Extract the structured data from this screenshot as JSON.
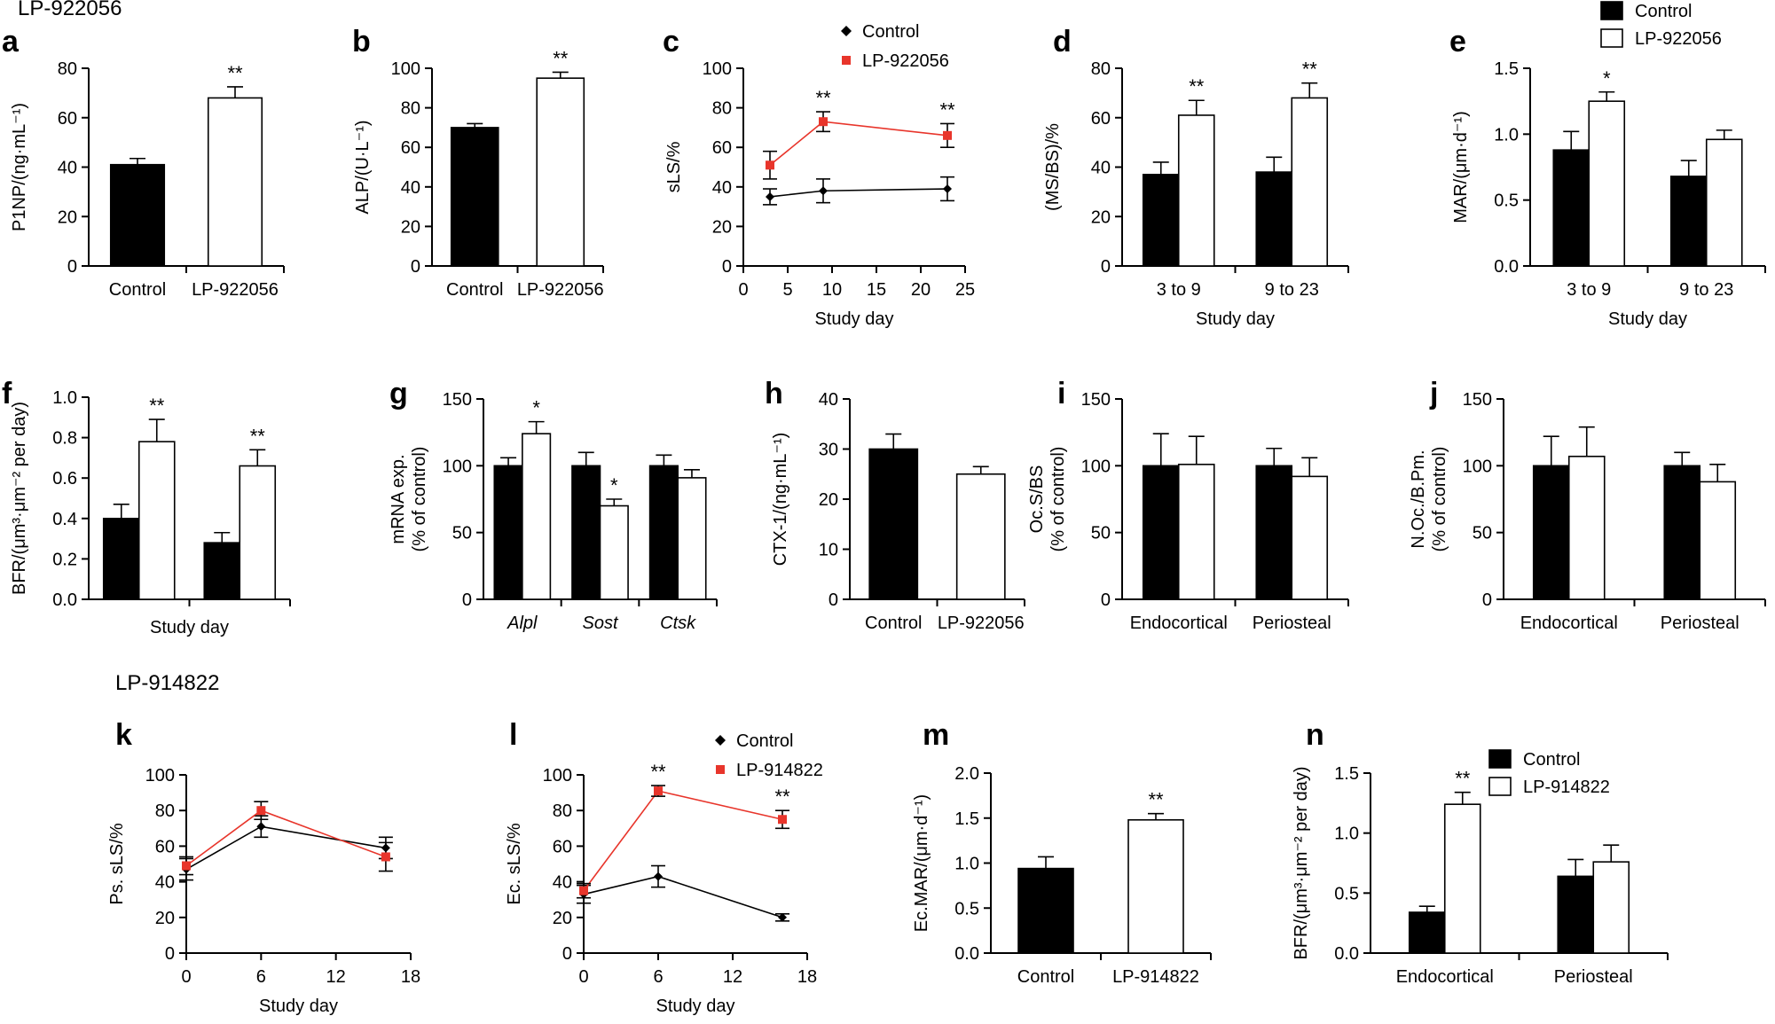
{
  "figure": {
    "title_top": "LP-922056",
    "title_bottom": "LP-914822"
  },
  "colors": {
    "control": "#000000",
    "treated": "#ffffff",
    "red": "#e8352b"
  },
  "chart_data": [
    {
      "id": "a",
      "label": "a",
      "type": "bar",
      "ylabel": "P1NP/(ng·mL⁻¹)",
      "ylim": [
        0,
        80
      ],
      "yticks": [
        "0",
        "20",
        "40",
        "60",
        "80"
      ],
      "categories": [
        "Control",
        "LP-922056"
      ],
      "values": [
        41,
        68
      ],
      "errors": [
        2.5,
        4.5
      ],
      "fills": [
        "c",
        "t"
      ],
      "sig": [
        "",
        "**"
      ]
    },
    {
      "id": "b",
      "label": "b",
      "type": "bar",
      "ylabel": "ALP/(U·L⁻¹)",
      "ylim": [
        0,
        100
      ],
      "yticks": [
        "0",
        "20",
        "40",
        "60",
        "80",
        "100"
      ],
      "categories": [
        "Control",
        "LP-922056"
      ],
      "values": [
        70,
        95
      ],
      "errors": [
        2,
        3
      ],
      "fills": [
        "c",
        "t"
      ],
      "sig": [
        "",
        "**"
      ]
    },
    {
      "id": "c",
      "label": "c",
      "type": "line",
      "ylabel": "sLS/%",
      "xlabel": "Study day",
      "xlim": [
        0,
        25
      ],
      "ylim": [
        0,
        100
      ],
      "xticks": [
        "0",
        "5",
        "10",
        "15",
        "20",
        "25"
      ],
      "yticks": [
        "0",
        "20",
        "40",
        "60",
        "80",
        "100"
      ],
      "legend": [
        "Control",
        "LP-922056"
      ],
      "series": [
        {
          "name": "Control",
          "x": [
            3,
            9,
            23
          ],
          "values": [
            35,
            38,
            39
          ],
          "errors": [
            4,
            6,
            6
          ],
          "color": "black",
          "marker": "diamond",
          "sig": [
            "",
            "",
            ""
          ]
        },
        {
          "name": "LP-922056",
          "x": [
            3,
            9,
            23
          ],
          "values": [
            51,
            73,
            66
          ],
          "errors": [
            7,
            5,
            6
          ],
          "color": "red",
          "marker": "square",
          "sig": [
            "",
            "**",
            "**"
          ]
        }
      ]
    },
    {
      "id": "d",
      "label": "d",
      "type": "grouped_bar",
      "ylabel": "(MS/BS)/%",
      "xlabel": "Study day",
      "ylim": [
        0,
        80
      ],
      "yticks": [
        "0",
        "20",
        "40",
        "60",
        "80"
      ],
      "categories": [
        "3 to 9",
        "9 to 23"
      ],
      "series": [
        {
          "name": "Control",
          "values": [
            37,
            38
          ],
          "errors": [
            5,
            6
          ],
          "sig": [
            "",
            ""
          ]
        },
        {
          "name": "LP-922056",
          "values": [
            61,
            68
          ],
          "errors": [
            6,
            6
          ],
          "sig": [
            "**",
            "**"
          ]
        }
      ]
    },
    {
      "id": "e",
      "label": "e",
      "type": "grouped_bar",
      "ylabel": "MAR/(μm·d⁻¹)",
      "xlabel": "Study day",
      "ylim": [
        0,
        1.5
      ],
      "yticks": [
        "0.0",
        "0.5",
        "1.0",
        "1.5"
      ],
      "categories": [
        "3 to 9",
        "9 to 23"
      ],
      "legend": [
        "Control",
        "LP-922056"
      ],
      "series": [
        {
          "name": "Control",
          "values": [
            0.88,
            0.68
          ],
          "errors": [
            0.14,
            0.12
          ],
          "sig": [
            "",
            ""
          ]
        },
        {
          "name": "LP-922056",
          "values": [
            1.25,
            0.96
          ],
          "errors": [
            0.07,
            0.07
          ],
          "sig": [
            "*",
            ""
          ]
        }
      ]
    },
    {
      "id": "f",
      "label": "f",
      "type": "grouped_bar",
      "ylabel": "BFR/(μm³·μm⁻² per day)",
      "xlabel": "Study day",
      "ylim": [
        0,
        1.0
      ],
      "yticks": [
        "0.0",
        "0.2",
        "0.4",
        "0.6",
        "0.8",
        "1.0"
      ],
      "categories": [
        "",
        ""
      ],
      "series": [
        {
          "name": "Control",
          "values": [
            0.4,
            0.28
          ],
          "errors": [
            0.07,
            0.05
          ],
          "sig": [
            "",
            ""
          ]
        },
        {
          "name": "LP-922056",
          "values": [
            0.78,
            0.66
          ],
          "errors": [
            0.11,
            0.08
          ],
          "sig": [
            "**",
            "**"
          ]
        }
      ]
    },
    {
      "id": "g",
      "label": "g",
      "type": "grouped_bar",
      "ylabel": "mRNA exp.\n(% of control)",
      "ylim": [
        0,
        150
      ],
      "yticks": [
        "0",
        "50",
        "100",
        "150"
      ],
      "categories": [
        "Alpl",
        "Sost",
        "Ctsk"
      ],
      "italic_categories": true,
      "series": [
        {
          "name": "Control",
          "values": [
            100,
            100,
            100
          ],
          "errors": [
            6,
            10,
            8
          ],
          "sig": [
            "",
            "",
            ""
          ]
        },
        {
          "name": "LP-922056",
          "values": [
            124,
            70,
            91
          ],
          "errors": [
            9,
            5,
            6
          ],
          "sig": [
            "*",
            "*",
            ""
          ]
        }
      ]
    },
    {
      "id": "h",
      "label": "h",
      "type": "bar",
      "ylabel": "CTX-1/(ng·mL⁻¹)",
      "ylim": [
        0,
        40
      ],
      "yticks": [
        "0",
        "10",
        "20",
        "30",
        "40"
      ],
      "categories": [
        "Control",
        "LP-922056"
      ],
      "values": [
        30,
        25
      ],
      "errors": [
        3,
        1.5
      ],
      "fills": [
        "c",
        "t"
      ],
      "sig": [
        "",
        ""
      ]
    },
    {
      "id": "i",
      "label": "i",
      "type": "grouped_bar",
      "ylabel": "Oc.S/BS\n(% of control)",
      "ylim": [
        0,
        150
      ],
      "yticks": [
        "0",
        "50",
        "100",
        "150"
      ],
      "categories": [
        "Endocortical",
        "Periosteal"
      ],
      "series": [
        {
          "name": "Control",
          "values": [
            100,
            100
          ],
          "errors": [
            24,
            13
          ],
          "sig": [
            "",
            ""
          ]
        },
        {
          "name": "LP-922056",
          "values": [
            101,
            92
          ],
          "errors": [
            21,
            14
          ],
          "sig": [
            "",
            ""
          ]
        }
      ]
    },
    {
      "id": "j",
      "label": "j",
      "type": "grouped_bar",
      "ylabel": "N.Oc./B.Pm.\n(% of control)",
      "ylim": [
        0,
        150
      ],
      "yticks": [
        "0",
        "50",
        "100",
        "150"
      ],
      "categories": [
        "Endocortical",
        "Periosteal"
      ],
      "series": [
        {
          "name": "Control",
          "values": [
            100,
            100
          ],
          "errors": [
            22,
            10
          ],
          "sig": [
            "",
            ""
          ]
        },
        {
          "name": "LP-922056",
          "values": [
            107,
            88
          ],
          "errors": [
            22,
            13
          ],
          "sig": [
            "",
            ""
          ]
        }
      ]
    },
    {
      "id": "k",
      "label": "k",
      "type": "line",
      "ylabel": "Ps. sLS/%",
      "xlabel": "Study day",
      "xlim": [
        0,
        18
      ],
      "ylim": [
        0,
        100
      ],
      "xticks": [
        "0",
        "6",
        "12",
        "18"
      ],
      "yticks": [
        "0",
        "20",
        "40",
        "60",
        "80",
        "100"
      ],
      "series": [
        {
          "name": "Control",
          "x": [
            0,
            6,
            16
          ],
          "values": [
            47,
            71,
            59
          ],
          "errors": [
            6,
            6,
            6
          ],
          "color": "black",
          "marker": "diamond",
          "sig": [
            "",
            "",
            ""
          ]
        },
        {
          "name": "LP-914822",
          "x": [
            0,
            6,
            16
          ],
          "values": [
            49,
            80,
            54
          ],
          "errors": [
            5,
            5,
            8
          ],
          "color": "red",
          "marker": "square",
          "sig": [
            "",
            "",
            ""
          ]
        }
      ]
    },
    {
      "id": "l",
      "label": "l",
      "type": "line",
      "ylabel": "Ec. sLS/%",
      "xlabel": "Study day",
      "xlim": [
        0,
        18
      ],
      "ylim": [
        0,
        100
      ],
      "xticks": [
        "0",
        "6",
        "12",
        "18"
      ],
      "yticks": [
        "0",
        "20",
        "40",
        "60",
        "80",
        "100"
      ],
      "legend": [
        "Control",
        "LP-914822"
      ],
      "series": [
        {
          "name": "Control",
          "x": [
            0,
            6,
            16
          ],
          "values": [
            33,
            43,
            20
          ],
          "errors": [
            5,
            6,
            2
          ],
          "color": "black",
          "marker": "diamond",
          "sig": [
            "",
            "",
            ""
          ]
        },
        {
          "name": "LP-914822",
          "x": [
            0,
            6,
            16
          ],
          "values": [
            35,
            91,
            75
          ],
          "errors": [
            4,
            3,
            5
          ],
          "color": "red",
          "marker": "square",
          "sig": [
            "",
            "**",
            "**"
          ]
        }
      ]
    },
    {
      "id": "m",
      "label": "m",
      "type": "bar",
      "ylabel": "Ec.MAR/(μm·d⁻¹)",
      "ylim": [
        0,
        2.0
      ],
      "yticks": [
        "0.0",
        "0.5",
        "1.0",
        "1.5",
        "2.0"
      ],
      "categories": [
        "Control",
        "LP-914822"
      ],
      "values": [
        0.94,
        1.48
      ],
      "errors": [
        0.13,
        0.07
      ],
      "fills": [
        "c",
        "t"
      ],
      "sig": [
        "",
        "**"
      ]
    },
    {
      "id": "n",
      "label": "n",
      "type": "grouped_bar",
      "ylabel": "BFR/(μm³·μm⁻² per day)",
      "ylim": [
        0,
        1.5
      ],
      "yticks": [
        "0.0",
        "0.5",
        "1.0",
        "1.5"
      ],
      "categories": [
        "Endocortical",
        "Periosteal"
      ],
      "legend": [
        "Control",
        "LP-914822"
      ],
      "series": [
        {
          "name": "Control",
          "values": [
            0.34,
            0.64
          ],
          "errors": [
            0.05,
            0.14
          ],
          "sig": [
            "",
            ""
          ]
        },
        {
          "name": "LP-914822",
          "values": [
            1.24,
            0.76
          ],
          "errors": [
            0.1,
            0.14
          ],
          "sig": [
            "**",
            ""
          ]
        }
      ]
    }
  ]
}
